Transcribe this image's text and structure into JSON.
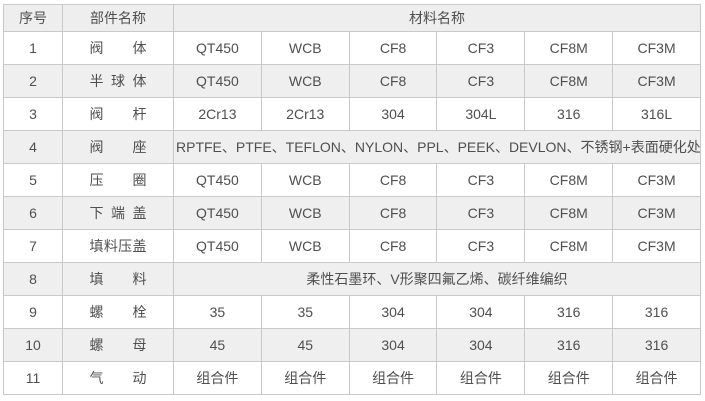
{
  "table": {
    "headers": {
      "no": "序号",
      "part": "部件名称",
      "material": "材料名称"
    },
    "rows": [
      {
        "no": "1",
        "part": "阀体",
        "materials": [
          "QT450",
          "WCB",
          "CF8",
          "CF3",
          "CF8M",
          "CF3M"
        ]
      },
      {
        "no": "2",
        "part": "半球体",
        "materials": [
          "QT450",
          "WCB",
          "CF8",
          "CF3",
          "CF8M",
          "CF3M"
        ]
      },
      {
        "no": "3",
        "part": "阀杆",
        "materials": [
          "2Cr13",
          "2Cr13",
          "304",
          "304L",
          "316",
          "316L"
        ]
      },
      {
        "no": "4",
        "part": "阀座",
        "span": "RPTFE、PTFE、TEFLON、NYLON、PPL、PEEK、DEVLON、不锈钢+表面硬化处理"
      },
      {
        "no": "5",
        "part": "压圈",
        "materials": [
          "QT450",
          "WCB",
          "CF8",
          "CF3",
          "CF8M",
          "CF3M"
        ]
      },
      {
        "no": "6",
        "part": "下端盖",
        "materials": [
          "QT450",
          "WCB",
          "CF8",
          "CF3",
          "CF8M",
          "CF3M"
        ]
      },
      {
        "no": "7",
        "part": "填料压盖",
        "materials": [
          "QT450",
          "WCB",
          "CF8",
          "CF3",
          "CF8M",
          "CF3M"
        ]
      },
      {
        "no": "8",
        "part": "填料",
        "span": "柔性石墨环、V形聚四氟乙烯、碳纤维编织"
      },
      {
        "no": "9",
        "part": "螺栓",
        "materials": [
          "35",
          "35",
          "304",
          "304",
          "316",
          "316"
        ]
      },
      {
        "no": "10",
        "part": "螺母",
        "materials": [
          "45",
          "45",
          "304",
          "304",
          "316",
          "316"
        ]
      },
      {
        "no": "11",
        "part": "气动",
        "materials": [
          "组合件",
          "组合件",
          "组合件",
          "组合件",
          "组合件",
          "组合件"
        ]
      }
    ],
    "colors": {
      "header_bg": "#eeeeee",
      "stripe_bg": "#efefef",
      "row_bg": "#ffffff",
      "border": "#c9c9c9",
      "text": "#4f4f4f"
    }
  }
}
